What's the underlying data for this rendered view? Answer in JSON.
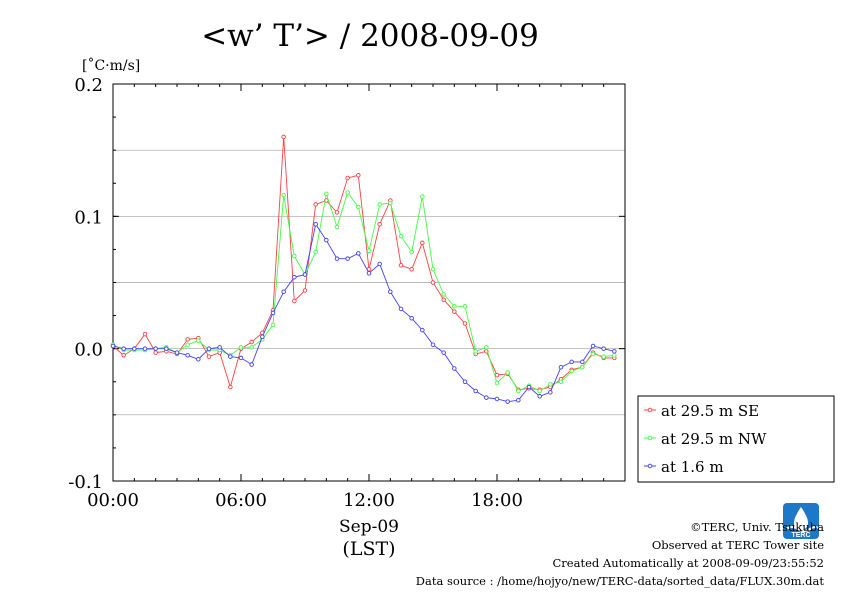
{
  "chart_data": {
    "type": "line",
    "title": "<w’ T’> / 2008-09-09",
    "unit": "[˚C·m/s]",
    "ylim": [
      -0.1,
      0.2
    ],
    "yticks": [
      {
        "value": 0.2,
        "label": "0.2"
      },
      {
        "value": 0.1,
        "label": "0.1"
      },
      {
        "value": 0.0,
        "label": "0.0"
      },
      {
        "value": -0.1,
        "label": "-0.1"
      }
    ],
    "xlim": [
      0,
      24
    ],
    "xticks": [
      {
        "value": 0,
        "label": "00:00"
      },
      {
        "value": 6,
        "label": "06:00"
      },
      {
        "value": 12,
        "label": "12:00"
      },
      {
        "value": 18,
        "label": "18:00"
      }
    ],
    "xlabel_date": "Sep-09",
    "xlabel_tz": "(LST)",
    "grid": true,
    "legend_position": "bottom-right-outside",
    "series": [
      {
        "name": "at 29.5 m SE",
        "color": "#ff4040",
        "x": [
          0,
          0.5,
          1,
          1.5,
          2,
          2.5,
          3,
          3.5,
          4,
          4.5,
          5,
          5.5,
          6,
          6.5,
          7,
          7.5,
          8,
          8.5,
          9,
          9.5,
          10,
          10.5,
          11,
          11.5,
          12,
          12.5,
          13,
          13.5,
          14,
          14.5,
          15,
          15.5,
          16,
          16.5,
          17,
          17.5,
          18,
          18.5,
          19,
          19.5,
          20,
          20.5,
          21,
          21.5,
          22,
          22.5,
          23,
          23.5
        ],
        "y": [
          0.002,
          -0.005,
          0.0,
          0.011,
          -0.003,
          -0.002,
          -0.004,
          0.007,
          0.008,
          -0.006,
          -0.003,
          -0.029,
          0.0,
          0.005,
          0.012,
          0.029,
          0.16,
          0.036,
          0.044,
          0.109,
          0.112,
          0.103,
          0.129,
          0.131,
          0.06,
          0.094,
          0.112,
          0.063,
          0.06,
          0.08,
          0.05,
          0.037,
          0.028,
          0.019,
          -0.004,
          -0.002,
          -0.02,
          -0.019,
          -0.031,
          -0.03,
          -0.031,
          -0.029,
          -0.023,
          -0.016,
          -0.014,
          -0.003,
          -0.007,
          -0.007
        ]
      },
      {
        "name": "at 29.5 m NW",
        "color": "#40ff40",
        "x": [
          0,
          0.5,
          1,
          1.5,
          2,
          2.5,
          3,
          3.5,
          4,
          4.5,
          5,
          5.5,
          6,
          6.5,
          7,
          7.5,
          8,
          8.5,
          9,
          9.5,
          10,
          10.5,
          11,
          11.5,
          12,
          12.5,
          13,
          13.5,
          14,
          14.5,
          15,
          15.5,
          16,
          16.5,
          17,
          17.5,
          18,
          18.5,
          19,
          19.5,
          20,
          20.5,
          21,
          21.5,
          22,
          22.5,
          23,
          23.5
        ],
        "y": [
          0.003,
          -0.001,
          -0.001,
          -0.001,
          0.0,
          0.001,
          -0.003,
          0.003,
          0.006,
          -0.001,
          -0.001,
          -0.005,
          0.001,
          0.001,
          0.007,
          0.018,
          0.116,
          0.07,
          0.056,
          0.073,
          0.117,
          0.092,
          0.118,
          0.107,
          0.074,
          0.109,
          0.11,
          0.085,
          0.073,
          0.115,
          0.06,
          0.041,
          0.032,
          0.032,
          -0.002,
          0.001,
          -0.026,
          -0.018,
          -0.032,
          -0.028,
          -0.032,
          -0.027,
          -0.025,
          -0.017,
          -0.014,
          -0.004,
          -0.006,
          -0.005
        ]
      },
      {
        "name": "at 1.6 m",
        "color": "#4040ff",
        "x": [
          0,
          0.5,
          1,
          1.5,
          2,
          2.5,
          3,
          3.5,
          4,
          4.5,
          5,
          5.5,
          6,
          6.5,
          7,
          7.5,
          8,
          8.5,
          9,
          9.5,
          10,
          10.5,
          11,
          11.5,
          12,
          12.5,
          13,
          13.5,
          14,
          14.5,
          15,
          15.5,
          16,
          16.5,
          17,
          17.5,
          18,
          18.5,
          19,
          19.5,
          20,
          20.5,
          21,
          21.5,
          22,
          22.5,
          23,
          23.5
        ],
        "y": [
          0.002,
          0.0,
          0.0,
          0.0,
          0.0,
          0.0,
          -0.003,
          -0.005,
          -0.008,
          0.0,
          0.001,
          -0.006,
          -0.007,
          -0.012,
          0.009,
          0.027,
          0.043,
          0.054,
          0.056,
          0.094,
          0.082,
          0.068,
          0.068,
          0.072,
          0.057,
          0.064,
          0.043,
          0.03,
          0.023,
          0.014,
          0.003,
          -0.003,
          -0.015,
          -0.025,
          -0.032,
          -0.037,
          -0.038,
          -0.04,
          -0.039,
          -0.029,
          -0.036,
          -0.033,
          -0.014,
          -0.01,
          -0.01,
          0.002,
          0.0,
          -0.002
        ]
      }
    ]
  },
  "footer": {
    "copyright": "©TERC, Univ. Tsukuba",
    "observed": "Observed at TERC Tower site",
    "created": "Created Automatically at 2008-09-09/23:55:52",
    "source": "Data source : /home/hojyo/new/TERC-data/sorted_data/FLUX.30m.dat",
    "logo_text": "TERC",
    "logo_color": "#1e78c8"
  }
}
